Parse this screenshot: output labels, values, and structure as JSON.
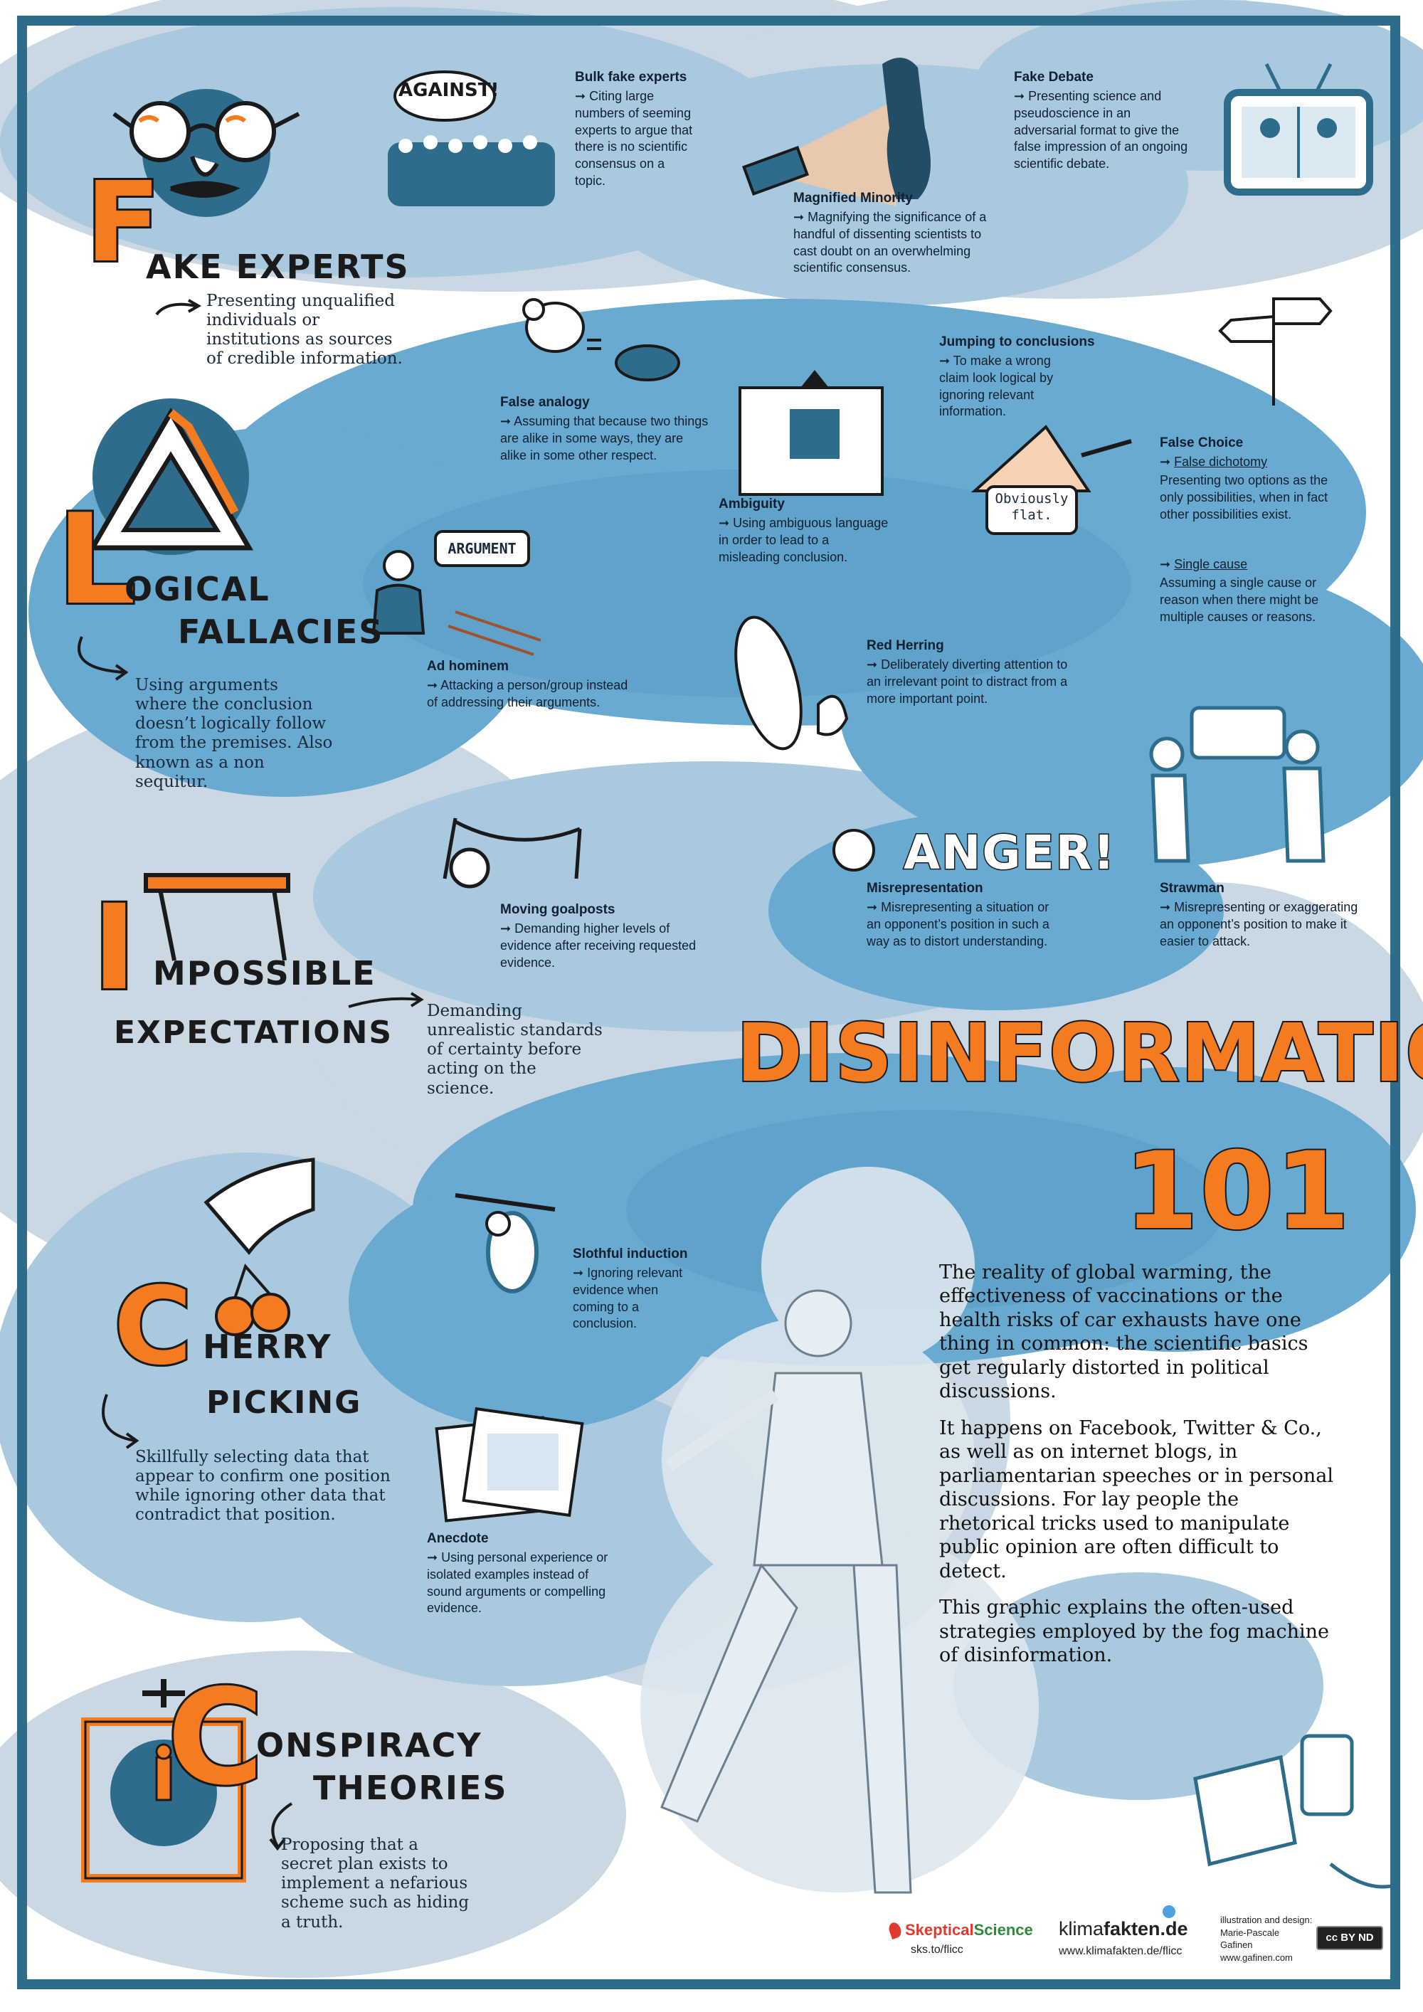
{
  "title": {
    "line1": "DISINFORMATION",
    "line2": "101"
  },
  "intro": [
    "The reality of global warming, the effectiveness of vaccinations or the health risks of car exhausts have one thing in common: the scientific basics get regularly distorted in political discussions.",
    "It happens on Facebook, Twitter & Co., as well as on internet blogs, in parliamentarian speeches or in personal discussions. For lay people the rhetorical tricks used to manipulate public opinion are often difficult to detect.",
    "This graphic explains the often-used strategies employed by the fog machine of disinformation."
  ],
  "categories": {
    "fake_experts": {
      "letter": "F",
      "word": "AKE EXPERTS",
      "desc": "Presenting unqualified individuals or institutions as sources of credible information."
    },
    "logical_fallacies": {
      "letter": "L",
      "word1": "OGICAL",
      "word2": "FALLACIES",
      "desc": "Using arguments where the conclusion doesn’t logically follow from the premises. Also known as a non sequitur."
    },
    "impossible_expectations": {
      "letter": "I",
      "word1": "MPOSSIBLE",
      "word2": "EXPECTATIONS",
      "desc": "Demanding unrealistic standards of certainty before acting on the science."
    },
    "cherry_picking": {
      "letter": "C",
      "word1": "HERRY",
      "word2": "PICKING",
      "desc": "Skillfully selecting data that appear to confirm one position while ignoring other data that contradict that position."
    },
    "conspiracy_theories": {
      "letter": "C",
      "word1": "ONSPIRACY",
      "word2": "THEORIES",
      "desc": "Proposing that a secret plan exists to implement a nefarious scheme such as hiding a truth."
    }
  },
  "techniques": {
    "bulk_fake_experts": {
      "title": "Bulk fake experts",
      "desc": "➞ Citing large numbers of seeming experts to argue that there is no scientific consensus on a topic."
    },
    "magnified_minority": {
      "title": "Magnified Minority",
      "desc": "➞ Magnifying the significance of a handful of dissenting scientists to cast doubt on an overwhelming scientific consensus."
    },
    "fake_debate": {
      "title": "Fake Debate",
      "desc": "➞ Presenting science and pseudoscience in an adversarial format to give the false impression of an ongoing scientific debate."
    },
    "false_analogy": {
      "title": "False analogy",
      "desc": "➞ Assuming that because two things are alike in some ways, they are alike in some other respect."
    },
    "jumping_to_conclusions": {
      "title": "Jumping to conclusions",
      "desc": "➞ To make a wrong claim look logical by ignoring relevant information."
    },
    "false_choice": {
      "title": "False Choice",
      "sub1": "False dichotomy",
      "desc1": "Presenting two options as the only possibilities, when in fact other possibilities exist.",
      "sub2": "Single cause",
      "desc2": "Assuming a single cause or reason when there might be multiple causes or reasons."
    },
    "ambiguity": {
      "title": "Ambiguity",
      "desc": "➞ Using ambiguous language in order to lead to a misleading conclusion."
    },
    "ad_hominem": {
      "title": "Ad hominem",
      "desc": "➞ Attacking a person/group instead of addressing their arguments."
    },
    "red_herring": {
      "title": "Red Herring",
      "desc": "➞ Deliberately diverting attention to an irrelevant point to distract from a more important point."
    },
    "moving_goalposts": {
      "title": "Moving goalposts",
      "desc": "➞ Demanding higher levels of evidence after receiving requested evidence."
    },
    "misrepresentation": {
      "title": "Misrepresentation",
      "desc": "➞ Misrepresenting a situation or an opponent’s position in such a way as to distort understanding."
    },
    "strawman": {
      "title": "Strawman",
      "desc": "➞ Misrepresenting or exaggerating an opponent’s position to make it easier to attack."
    },
    "slothful_induction": {
      "title": "Slothful induction",
      "desc": "➞ Ignoring relevant evidence when coming to a conclusion."
    },
    "anecdote": {
      "title": "Anecdote",
      "desc": "➞ Using personal experience or isolated examples instead of sound arguments or compelling evidence."
    }
  },
  "speech": {
    "against": "AGAINST!",
    "argument": "ARGUMENT",
    "obviously_flat": "Obviously flat.",
    "anger": "ANGER!"
  },
  "footer": {
    "skeptical_science": {
      "name1": "Skeptical",
      "name2": "Science",
      "url": "sks.to/flicc"
    },
    "klimafakten": {
      "name1": "klima",
      "name2": "fakten.de",
      "url": "www.klimafakten.de/flicc"
    },
    "credit": {
      "line1": "illustration and design:",
      "line2": "Marie-Pascale Gafinen",
      "line3": "www.gafinen.com"
    },
    "cc_badge": "cc BY ND"
  },
  "colors": {
    "orange": "#f47b20",
    "frame_blue": "#2e6c8c",
    "cloud_dark": "#5a9fc6",
    "cloud_mid": "#8ebcd8",
    "cloud_light": "#cfdfea",
    "ink": "#1a1a1a"
  }
}
